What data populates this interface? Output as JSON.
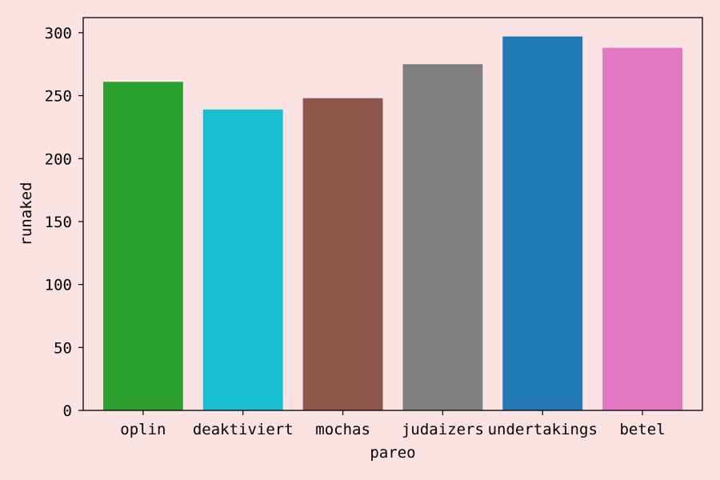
{
  "chart_data": {
    "type": "bar",
    "categories": [
      "oplin",
      "deaktiviert",
      "mochas",
      "judaizers",
      "undertakings",
      "betel"
    ],
    "values": [
      261,
      239,
      248,
      275,
      297,
      288
    ],
    "colors": [
      "#2ca02c",
      "#17becf",
      "#8c564b",
      "#7f7f7f",
      "#1f77b4",
      "#e377c2"
    ],
    "xlabel": "pareo",
    "ylabel": "runaked",
    "ylim": [
      0,
      312
    ],
    "yticks": [
      0,
      50,
      100,
      150,
      200,
      250,
      300
    ],
    "grid": false,
    "background": "#fbe3e4"
  }
}
